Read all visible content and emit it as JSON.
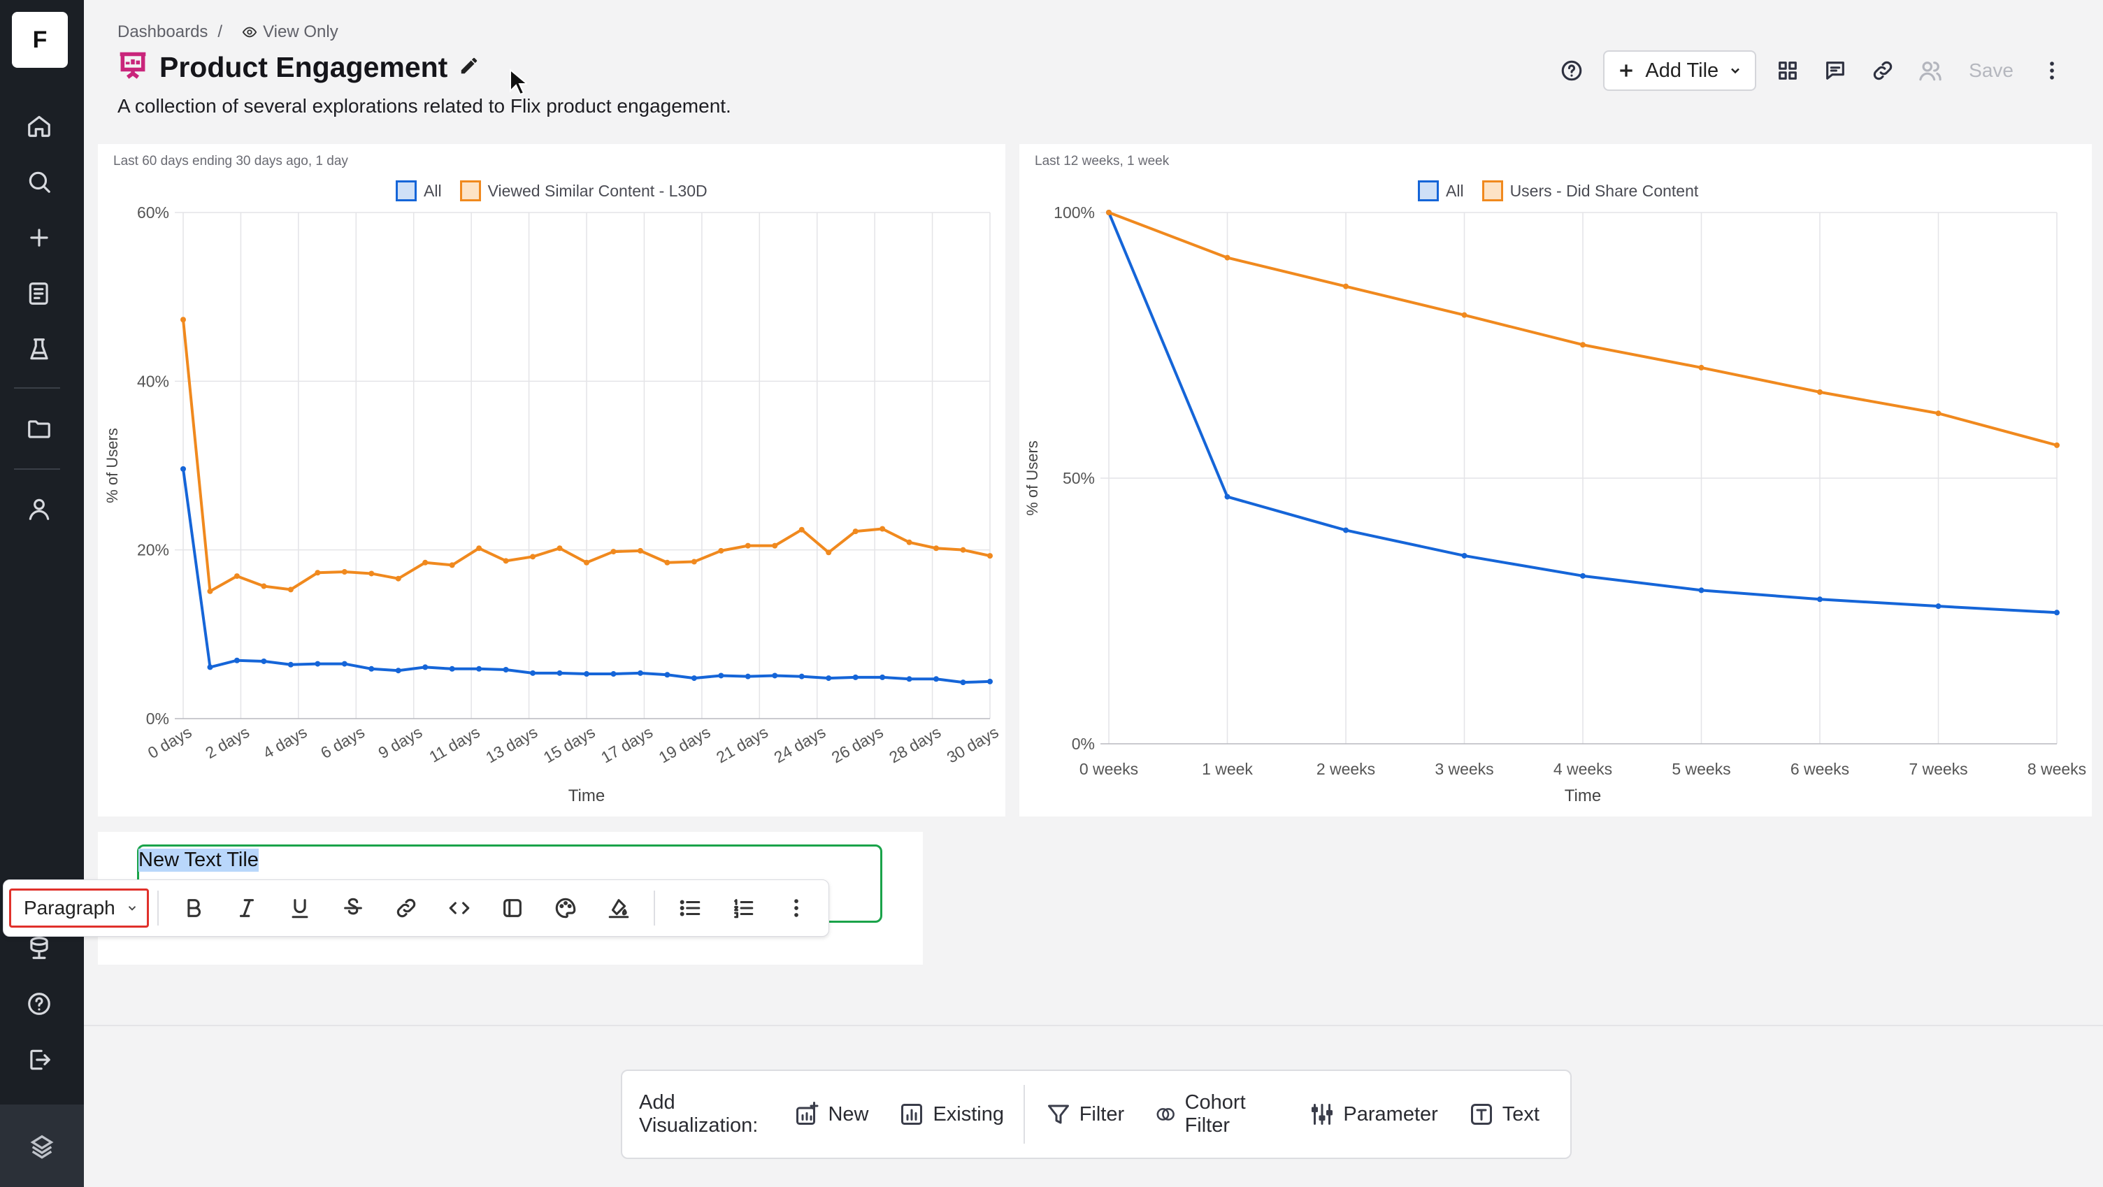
{
  "app": {
    "logo_letter": "F"
  },
  "sidebar": {
    "items": [
      {
        "name": "home-icon"
      },
      {
        "name": "search-icon"
      },
      {
        "name": "plus-icon"
      },
      {
        "name": "notebook-icon"
      },
      {
        "name": "lab-flask-icon"
      },
      {
        "name": "folder-icon"
      },
      {
        "name": "user-icon"
      },
      {
        "name": "database-icon"
      },
      {
        "name": "help-icon"
      },
      {
        "name": "logout-icon"
      }
    ]
  },
  "breadcrumb": {
    "root": "Dashboards",
    "separator": "/",
    "mode": "View Only"
  },
  "header": {
    "title": "Product Engagement",
    "description": "A collection of several explorations related to Flix product engagement.",
    "add_tile_label": "Add Tile",
    "save_label": "Save"
  },
  "colors": {
    "all_series": "#1565d8",
    "cohort_series": "#f0891e",
    "editor_border": "#1aa34a",
    "highlight_box": "#e0312b"
  },
  "charts": [
    {
      "subtitle": "Last 60 days ending 30 days ago, 1 day",
      "legend": [
        "All",
        "Viewed Similar Content - L30D"
      ],
      "xlabel": "Time",
      "ylabel": "% of Users",
      "y_ticks": [
        "60%",
        "40%",
        "20%",
        "0%"
      ],
      "x_tick_labels": [
        "0 days",
        "2 days",
        "4 days",
        "6 days",
        "9 days",
        "11 days",
        "13 days",
        "15 days",
        "17 days",
        "19 days",
        "21 days",
        "24 days",
        "26 days",
        "28 days",
        "30 days"
      ]
    },
    {
      "subtitle": "Last 12 weeks, 1 week",
      "legend": [
        "All",
        "Users - Did Share Content"
      ],
      "xlabel": "Time",
      "ylabel": "% of Users",
      "y_ticks": [
        "100%",
        "50%",
        "0%"
      ],
      "x_tick_labels": [
        "0 weeks",
        "1 week",
        "2 weeks",
        "3 weeks",
        "4 weeks",
        "5 weeks",
        "6 weeks",
        "7 weeks",
        "8 weeks"
      ]
    }
  ],
  "chart_data": [
    {
      "type": "line",
      "title": "",
      "xlabel": "Time",
      "ylabel": "% of Users",
      "ylim": [
        0,
        60
      ],
      "legend": "top",
      "grid": true,
      "x": [
        0,
        1,
        2,
        3,
        4,
        5,
        6,
        7,
        8,
        9,
        10,
        11,
        12,
        13,
        14,
        15,
        16,
        17,
        18,
        19,
        20,
        21,
        22,
        23,
        24,
        25,
        26,
        27,
        28,
        29,
        30
      ],
      "series": [
        {
          "name": "All",
          "values": [
            29.6,
            6.1,
            6.9,
            6.8,
            6.4,
            6.5,
            6.5,
            5.9,
            5.7,
            6.1,
            5.9,
            5.9,
            5.8,
            5.4,
            5.4,
            5.3,
            5.3,
            5.4,
            5.2,
            4.8,
            5.1,
            5.0,
            5.1,
            5.0,
            4.8,
            4.9,
            4.9,
            4.7,
            4.7,
            4.3,
            4.4
          ]
        },
        {
          "name": "Viewed Similar Content - L30D",
          "values": [
            47.3,
            15.1,
            16.9,
            15.7,
            15.3,
            17.3,
            17.4,
            17.2,
            16.6,
            18.5,
            18.2,
            20.2,
            18.7,
            19.2,
            20.2,
            18.5,
            19.8,
            19.9,
            18.5,
            18.6,
            19.9,
            20.5,
            20.5,
            22.4,
            19.7,
            22.2,
            22.5,
            20.9,
            20.2,
            20.0,
            19.3
          ]
        }
      ]
    },
    {
      "type": "line",
      "title": "",
      "xlabel": "Time",
      "ylabel": "% of Users",
      "ylim": [
        0,
        100
      ],
      "legend": "top",
      "grid": true,
      "categories": [
        "0 weeks",
        "1 week",
        "2 weeks",
        "3 weeks",
        "4 weeks",
        "5 weeks",
        "6 weeks",
        "7 weeks",
        "8 weeks"
      ],
      "series": [
        {
          "name": "All",
          "values": [
            100,
            46.5,
            40.2,
            35.4,
            31.6,
            28.9,
            27.2,
            25.9,
            24.7
          ]
        },
        {
          "name": "Users - Did Share Content",
          "values": [
            100,
            91.5,
            86.1,
            80.7,
            75.1,
            70.8,
            66.2,
            62.2,
            56.2
          ]
        }
      ]
    }
  ],
  "text_tile": {
    "content": "New Text Tile",
    "block_type": "Paragraph"
  },
  "add_bar": {
    "label": "Add Visualization:",
    "buttons": [
      {
        "label": "New",
        "icon": "new-chart-icon"
      },
      {
        "label": "Existing",
        "icon": "existing-chart-icon"
      },
      {
        "label": "Filter",
        "icon": "filter-icon"
      },
      {
        "label": "Cohort Filter",
        "icon": "cohort-filter-icon"
      },
      {
        "label": "Parameter",
        "icon": "sliders-icon"
      },
      {
        "label": "Text",
        "icon": "text-icon"
      }
    ]
  }
}
